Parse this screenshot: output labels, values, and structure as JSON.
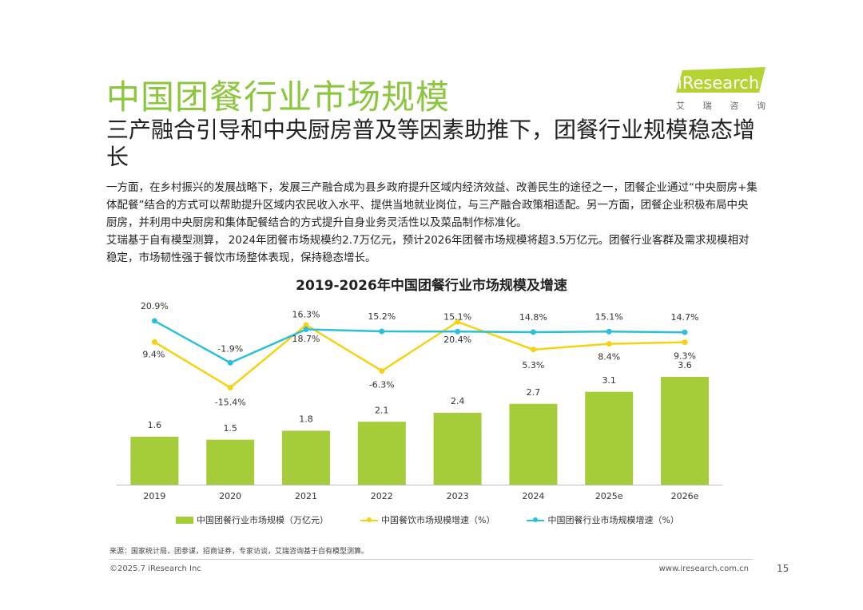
{
  "header": {
    "title": "中国团餐行业市场规模",
    "subtitle": "三产融合引导和中央厨房普及等因素助推下，团餐行业规模稳态增长",
    "body": [
      "一方面，在乡村振兴的发展战略下，发展三产融合成为县乡政府提升区域内经济效益、改善民生的途径之一，团餐企业通过“中央厨房+集体配餐”结合的方式可以帮助提升区域内农民收入水平、提供当地就业岗位，与三产融合政策相适配。另一方面，团餐企业积极布局中央厨房，并利用中央厨房和集体配餐结合的方式提升自身业务灵活性以及菜品制作标准化。",
      "艾瑞基于自有模型测算， 2024年团餐市场规模约2.7万亿元，预计2026年团餐市场规模将超3.5万亿元。团餐行业客群及需求规模相对稳定，市场韧性强于餐饮市场整体表现，保持稳态增长。"
    ]
  },
  "logo": {
    "wordmark": "iResearch",
    "chinese": [
      "艾",
      "瑞",
      "咨",
      "询"
    ]
  },
  "chart_data": {
    "type": "bar",
    "title": "2019-2026年中国团餐行业市场规模及增速",
    "categories": [
      "2019",
      "2020",
      "2021",
      "2022",
      "2023",
      "2024",
      "2025e",
      "2026e"
    ],
    "series": [
      {
        "name": "中国团餐行业市场规模（万亿元）",
        "type": "bar",
        "values": [
          1.6,
          1.5,
          1.8,
          2.1,
          2.4,
          2.7,
          3.1,
          3.6
        ],
        "labels": [
          "1.6",
          "1.5",
          "1.8",
          "2.1",
          "2.4",
          "2.7",
          "3.1",
          "3.6"
        ]
      },
      {
        "name": "中国餐饮市场规模增速（%）",
        "type": "line",
        "values": [
          9.4,
          -15.4,
          18.7,
          -6.3,
          20.4,
          5.3,
          8.4,
          9.3
        ],
        "labels": [
          "9.4%",
          "-15.4%",
          "18.7%",
          "-6.3%",
          "20.4%",
          "5.3%",
          "8.4%",
          "9.3%"
        ]
      },
      {
        "name": "中国团餐行业市场规模增速（%）",
        "type": "line",
        "values": [
          20.9,
          -1.9,
          16.3,
          15.2,
          15.1,
          14.8,
          15.1,
          14.7
        ],
        "labels": [
          "20.9%",
          "-1.9%",
          "16.3%",
          "15.2%",
          "15.1%",
          "14.8%",
          "15.1%",
          "14.7%"
        ]
      }
    ],
    "colors": {
      "bar": "#a5cd39",
      "catering_growth": "#f5d214",
      "team_growth": "#2bbfd9"
    }
  },
  "footer": {
    "source": "来源：国家统计局，团参谋，招商证券，专家访谈，艾瑞咨询基于自有模型测算。",
    "copyright": "©2025.7 iResearch Inc",
    "website": "www.iresearch.com.cn",
    "page": "15"
  }
}
